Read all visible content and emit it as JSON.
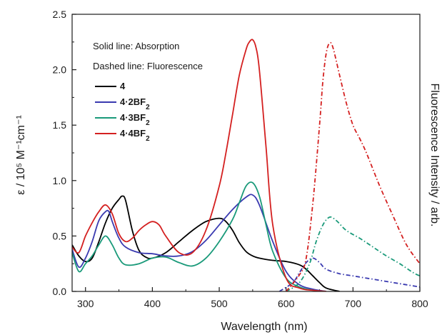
{
  "chart_data": {
    "type": "line",
    "xlabel": "Wavelength (nm)",
    "ylabel_left": "ε / 10⁵ M⁻¹cm⁻¹",
    "ylabel_right": "Fluorescence Intensity / arb.",
    "xlim": [
      280,
      800
    ],
    "ylim": [
      0,
      2.5
    ],
    "x_ticks": [
      300,
      400,
      500,
      600,
      700,
      800
    ],
    "y_ticks": [
      0.0,
      0.5,
      1.0,
      1.5,
      2.0,
      2.5
    ],
    "y_tick_labels": [
      "0.0",
      "0.5",
      "1.0",
      "1.5",
      "2.0",
      "2.5"
    ],
    "annotations": [
      "Solid line: Absorption",
      "Dashed line: Fluorescence"
    ],
    "legend_position": "top-left",
    "series": [
      {
        "name": "4",
        "color": "#000000",
        "absorption": {
          "x": [
            280,
            290,
            300,
            310,
            320,
            330,
            340,
            350,
            355,
            360,
            370,
            380,
            390,
            400,
            420,
            440,
            460,
            480,
            500,
            510,
            520,
            530,
            540,
            550,
            560,
            580,
            600,
            620,
            630,
            640,
            650,
            660,
            680
          ],
          "y": [
            0.42,
            0.32,
            0.27,
            0.3,
            0.45,
            0.62,
            0.75,
            0.83,
            0.86,
            0.82,
            0.55,
            0.37,
            0.31,
            0.3,
            0.35,
            0.45,
            0.55,
            0.63,
            0.66,
            0.63,
            0.55,
            0.44,
            0.36,
            0.32,
            0.3,
            0.28,
            0.27,
            0.24,
            0.2,
            0.14,
            0.08,
            0.03,
            0.0
          ]
        },
        "fluorescence": {
          "x": [],
          "y": []
        }
      },
      {
        "name": "4·2BF2",
        "color": "#3a3ab0",
        "absorption": {
          "x": [
            280,
            290,
            300,
            310,
            320,
            330,
            335,
            340,
            350,
            360,
            380,
            400,
            420,
            440,
            460,
            480,
            500,
            520,
            540,
            550,
            560,
            580,
            600,
            620,
            640,
            660
          ],
          "y": [
            0.38,
            0.22,
            0.3,
            0.45,
            0.64,
            0.72,
            0.72,
            0.63,
            0.48,
            0.4,
            0.35,
            0.34,
            0.32,
            0.32,
            0.36,
            0.46,
            0.6,
            0.74,
            0.85,
            0.87,
            0.78,
            0.45,
            0.18,
            0.06,
            0.02,
            0.0
          ]
        },
        "fluorescence": {
          "x": [
            590,
            610,
            620,
            630,
            640,
            650,
            660,
            680,
            700,
            720,
            740,
            760,
            780,
            800
          ],
          "y": [
            0.0,
            0.08,
            0.17,
            0.26,
            0.3,
            0.26,
            0.2,
            0.16,
            0.14,
            0.12,
            0.1,
            0.08,
            0.06,
            0.04
          ]
        }
      },
      {
        "name": "4·3BF2",
        "color": "#1a9a7a",
        "absorption": {
          "x": [
            280,
            290,
            300,
            310,
            320,
            330,
            340,
            350,
            360,
            380,
            400,
            420,
            440,
            460,
            480,
            500,
            520,
            530,
            540,
            550,
            560,
            570,
            580,
            600,
            620,
            640,
            660
          ],
          "y": [
            0.35,
            0.18,
            0.25,
            0.32,
            0.42,
            0.5,
            0.42,
            0.3,
            0.24,
            0.25,
            0.3,
            0.31,
            0.26,
            0.23,
            0.3,
            0.45,
            0.65,
            0.8,
            0.95,
            0.98,
            0.86,
            0.6,
            0.36,
            0.12,
            0.04,
            0.01,
            0.0
          ]
        },
        "fluorescence": {
          "x": [
            600,
            620,
            635,
            645,
            655,
            665,
            675,
            690,
            710,
            730,
            750,
            770,
            790,
            800
          ],
          "y": [
            0.0,
            0.08,
            0.25,
            0.45,
            0.6,
            0.67,
            0.64,
            0.55,
            0.48,
            0.4,
            0.32,
            0.25,
            0.17,
            0.14
          ]
        }
      },
      {
        "name": "4·4BF2",
        "color": "#d42020",
        "absorption": {
          "x": [
            280,
            290,
            300,
            310,
            320,
            330,
            340,
            350,
            360,
            370,
            380,
            390,
            400,
            410,
            420,
            440,
            460,
            480,
            500,
            510,
            520,
            530,
            540,
            545,
            550,
            555,
            560,
            570,
            580,
            600,
            620,
            640,
            660
          ],
          "y": [
            0.4,
            0.35,
            0.5,
            0.62,
            0.72,
            0.78,
            0.7,
            0.52,
            0.45,
            0.48,
            0.55,
            0.6,
            0.63,
            0.6,
            0.5,
            0.35,
            0.35,
            0.55,
            0.95,
            1.25,
            1.6,
            1.95,
            2.18,
            2.25,
            2.27,
            2.2,
            2.0,
            1.3,
            0.6,
            0.12,
            0.03,
            0.01,
            0.0
          ]
        },
        "fluorescence": {
          "x": [
            600,
            620,
            630,
            640,
            650,
            655,
            660,
            665,
            670,
            680,
            690,
            700,
            710,
            720,
            740,
            760,
            780,
            800
          ],
          "y": [
            0.0,
            0.15,
            0.3,
            0.8,
            1.5,
            1.9,
            2.15,
            2.24,
            2.2,
            1.95,
            1.7,
            1.5,
            1.38,
            1.25,
            0.95,
            0.68,
            0.42,
            0.25
          ]
        }
      }
    ]
  }
}
